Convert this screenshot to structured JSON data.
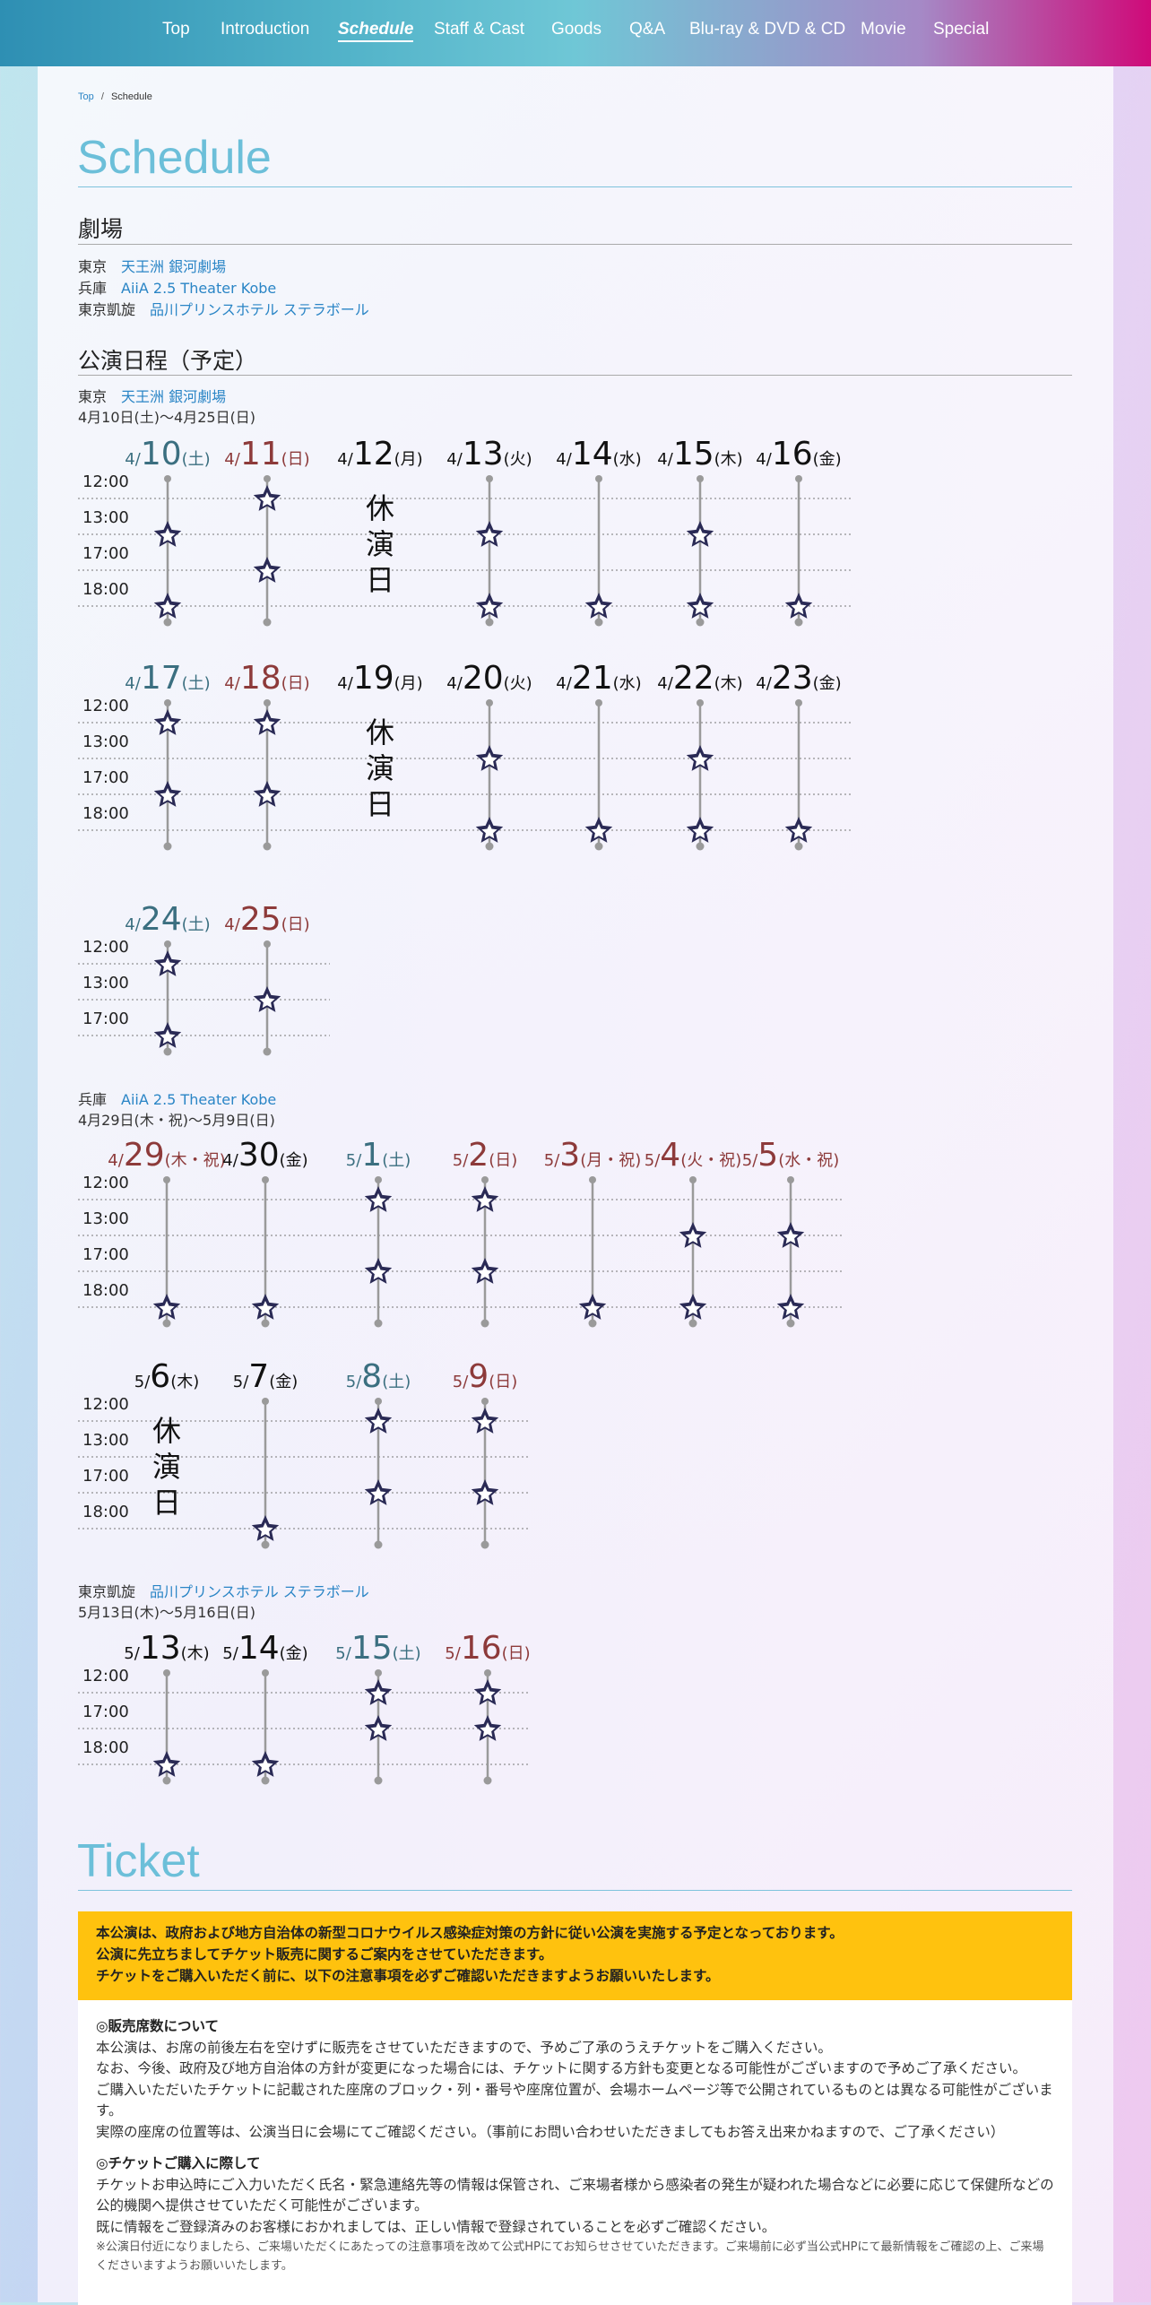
{
  "nav": [
    "Top",
    "Introduction",
    "Schedule",
    "Staff & Cast",
    "Goods",
    "Q&A",
    "Blu-ray & DVD & CD",
    "Movie",
    "Special"
  ],
  "breadcrumb": {
    "home": "Top",
    "sep": "/",
    "current": "Schedule"
  },
  "schedule_title": "Schedule",
  "theater": {
    "heading": "劇場",
    "rows": [
      {
        "city": "東京",
        "venue": "天王洲 銀河劇場"
      },
      {
        "city": "兵庫",
        "venue": "AiiA 2.5 Theater Kobe"
      },
      {
        "city": "東京凱旋",
        "venue": "品川プリンスホテル ステラボール"
      }
    ]
  },
  "performance_heading": "公演日程（予定）",
  "rest_label": [
    "休",
    "演",
    "日"
  ],
  "venues": [
    {
      "city": "東京",
      "venue": "天王洲 銀河劇場",
      "period": "4月10日(土)～4月25日(日)"
    },
    {
      "city": "兵庫",
      "venue": "AiiA 2.5 Theater Kobe",
      "period": "4月29日(木・祝)～5月9日(日)"
    },
    {
      "city": "東京凱旋",
      "venue": "品川プリンスホテル ステラボール",
      "period": "5月13日(木)～5月16日(日)"
    }
  ],
  "colors": {
    "nav_blue": "#2e8fb3",
    "nav_magenta": "#cf0a79",
    "saturday": "#3b6f80",
    "holiday": "#8d3a3a",
    "weekday": "#111111",
    "star": "#2a2a55",
    "link": "#2a85c6",
    "ticket_alert": "#ffc20e"
  },
  "grids": [
    {
      "times": [
        "12:00",
        "13:00",
        "17:00",
        "18:00"
      ],
      "days": [
        {
          "m": "4",
          "d": "10",
          "w": "土",
          "type": "sat",
          "shows": [
            1,
            3
          ]
        },
        {
          "m": "4",
          "d": "11",
          "w": "日",
          "type": "hol",
          "shows": [
            0,
            2
          ]
        },
        {
          "m": "4",
          "d": "12",
          "w": "月",
          "type": "wd",
          "rest": true,
          "shows": []
        },
        {
          "m": "4",
          "d": "13",
          "w": "火",
          "type": "wd",
          "shows": [
            1,
            3
          ]
        },
        {
          "m": "4",
          "d": "14",
          "w": "水",
          "type": "wd",
          "shows": [
            3
          ]
        },
        {
          "m": "4",
          "d": "15",
          "w": "木",
          "type": "wd",
          "shows": [
            1,
            3
          ]
        },
        {
          "m": "4",
          "d": "16",
          "w": "金",
          "type": "wd",
          "shows": [
            3
          ]
        }
      ]
    },
    {
      "times": [
        "12:00",
        "13:00",
        "17:00",
        "18:00"
      ],
      "days": [
        {
          "m": "4",
          "d": "17",
          "w": "土",
          "type": "sat",
          "shows": [
            0,
            2
          ]
        },
        {
          "m": "4",
          "d": "18",
          "w": "日",
          "type": "hol",
          "shows": [
            0,
            2
          ]
        },
        {
          "m": "4",
          "d": "19",
          "w": "月",
          "type": "wd",
          "rest": true,
          "shows": []
        },
        {
          "m": "4",
          "d": "20",
          "w": "火",
          "type": "wd",
          "shows": [
            1,
            3
          ]
        },
        {
          "m": "4",
          "d": "21",
          "w": "水",
          "type": "wd",
          "shows": [
            3
          ]
        },
        {
          "m": "4",
          "d": "22",
          "w": "木",
          "type": "wd",
          "shows": [
            1,
            3
          ]
        },
        {
          "m": "4",
          "d": "23",
          "w": "金",
          "type": "wd",
          "shows": [
            3
          ]
        }
      ]
    },
    {
      "times": [
        "12:00",
        "13:00",
        "17:00"
      ],
      "days": [
        {
          "m": "4",
          "d": "24",
          "w": "土",
          "type": "sat",
          "shows": [
            0,
            2
          ]
        },
        {
          "m": "4",
          "d": "25",
          "w": "日",
          "type": "hol",
          "shows": [
            1
          ]
        }
      ]
    },
    {
      "times": [
        "12:00",
        "13:00",
        "17:00",
        "18:00"
      ],
      "days": [
        {
          "m": "4",
          "d": "29",
          "w": "木・祝",
          "type": "hol",
          "shows": [
            3
          ]
        },
        {
          "m": "4",
          "d": "30",
          "w": "金",
          "type": "wd",
          "shows": [
            3
          ]
        },
        {
          "m": "5",
          "d": "1",
          "w": "土",
          "type": "sat",
          "shows": [
            0,
            2
          ]
        },
        {
          "m": "5",
          "d": "2",
          "w": "日",
          "type": "hol",
          "shows": [
            0,
            2
          ]
        },
        {
          "m": "5",
          "d": "3",
          "w": "月・祝",
          "type": "hol",
          "shows": [
            3
          ]
        },
        {
          "m": "5",
          "d": "4",
          "w": "火・祝",
          "type": "hol",
          "shows": [
            1,
            3
          ]
        },
        {
          "m": "5",
          "d": "5",
          "w": "水・祝",
          "type": "hol",
          "shows": [
            1,
            3
          ]
        }
      ]
    },
    {
      "times": [
        "12:00",
        "13:00",
        "17:00",
        "18:00"
      ],
      "days": [
        {
          "m": "5",
          "d": "6",
          "w": "木",
          "type": "wd",
          "rest": true,
          "shows": []
        },
        {
          "m": "5",
          "d": "7",
          "w": "金",
          "type": "wd",
          "shows": [
            3
          ]
        },
        {
          "m": "5",
          "d": "8",
          "w": "土",
          "type": "sat",
          "shows": [
            0,
            2
          ]
        },
        {
          "m": "5",
          "d": "9",
          "w": "日",
          "type": "hol",
          "shows": [
            0,
            2
          ]
        }
      ]
    },
    {
      "times": [
        "12:00",
        "17:00",
        "18:00"
      ],
      "days": [
        {
          "m": "5",
          "d": "13",
          "w": "木",
          "type": "wd",
          "shows": [
            2
          ]
        },
        {
          "m": "5",
          "d": "14",
          "w": "金",
          "type": "wd",
          "shows": [
            2
          ]
        },
        {
          "m": "5",
          "d": "15",
          "w": "土",
          "type": "sat",
          "shows": [
            0,
            1
          ]
        },
        {
          "m": "5",
          "d": "16",
          "w": "日",
          "type": "hol",
          "shows": [
            0,
            1
          ]
        }
      ]
    }
  ],
  "ticket": {
    "title": "Ticket",
    "alert": [
      "本公演は、政府および地方自治体の新型コロナウイルス感染症対策の方針に従い公演を実施する予定となっております。",
      "公演に先立ちましてチケット販売に関するご案内をさせていただきます。",
      "チケットをご購入いただく前に、以下の注意事項を必ずご確認いただきますようお願いいたします。"
    ],
    "sec1_title": "◎販売席数について",
    "sec1_lines": [
      "本公演は、お席の前後左右を空けずに販売をさせていただきますので、予めご了承のうえチケットをご購入ください。",
      "なお、今後、政府及び地方自治体の方針が変更になった場合には、チケットに関する方針も変更となる可能性がございますので予めご了承ください。",
      "ご購入いただいたチケットに記載された座席のブロック・列・番号や座席位置が、会場ホームページ等で公開されているものとは異なる可能性がございます。",
      "実際の座席の位置等は、公演当日に会場にてご確認ください。（事前にお問い合わせいただきましてもお答え出来かねますので、ご了承ください）"
    ],
    "sec2_title": "◎チケットご購入に際して",
    "sec2_lines": [
      "チケットお申込時にご入力いただく氏名・緊急連絡先等の情報は保管され、ご来場者様から感染者の発生が疑われた場合などに必要に応じて保健所などの公的機関へ提供させていただく可能性がございます。",
      "既に情報をご登録済みのお客様におかれましては、正しい情報で登録されていることを必ずご確認ください。"
    ],
    "sec2_note": "※公演日付近になりましたら、ご来場いただくにあたっての注意事項を改めて公式HPにてお知らせさせていただきます。ご来場前に必ず当公式HPにて最新情報をご確認の上、ご来場くださいますようお願いいたします。"
  }
}
